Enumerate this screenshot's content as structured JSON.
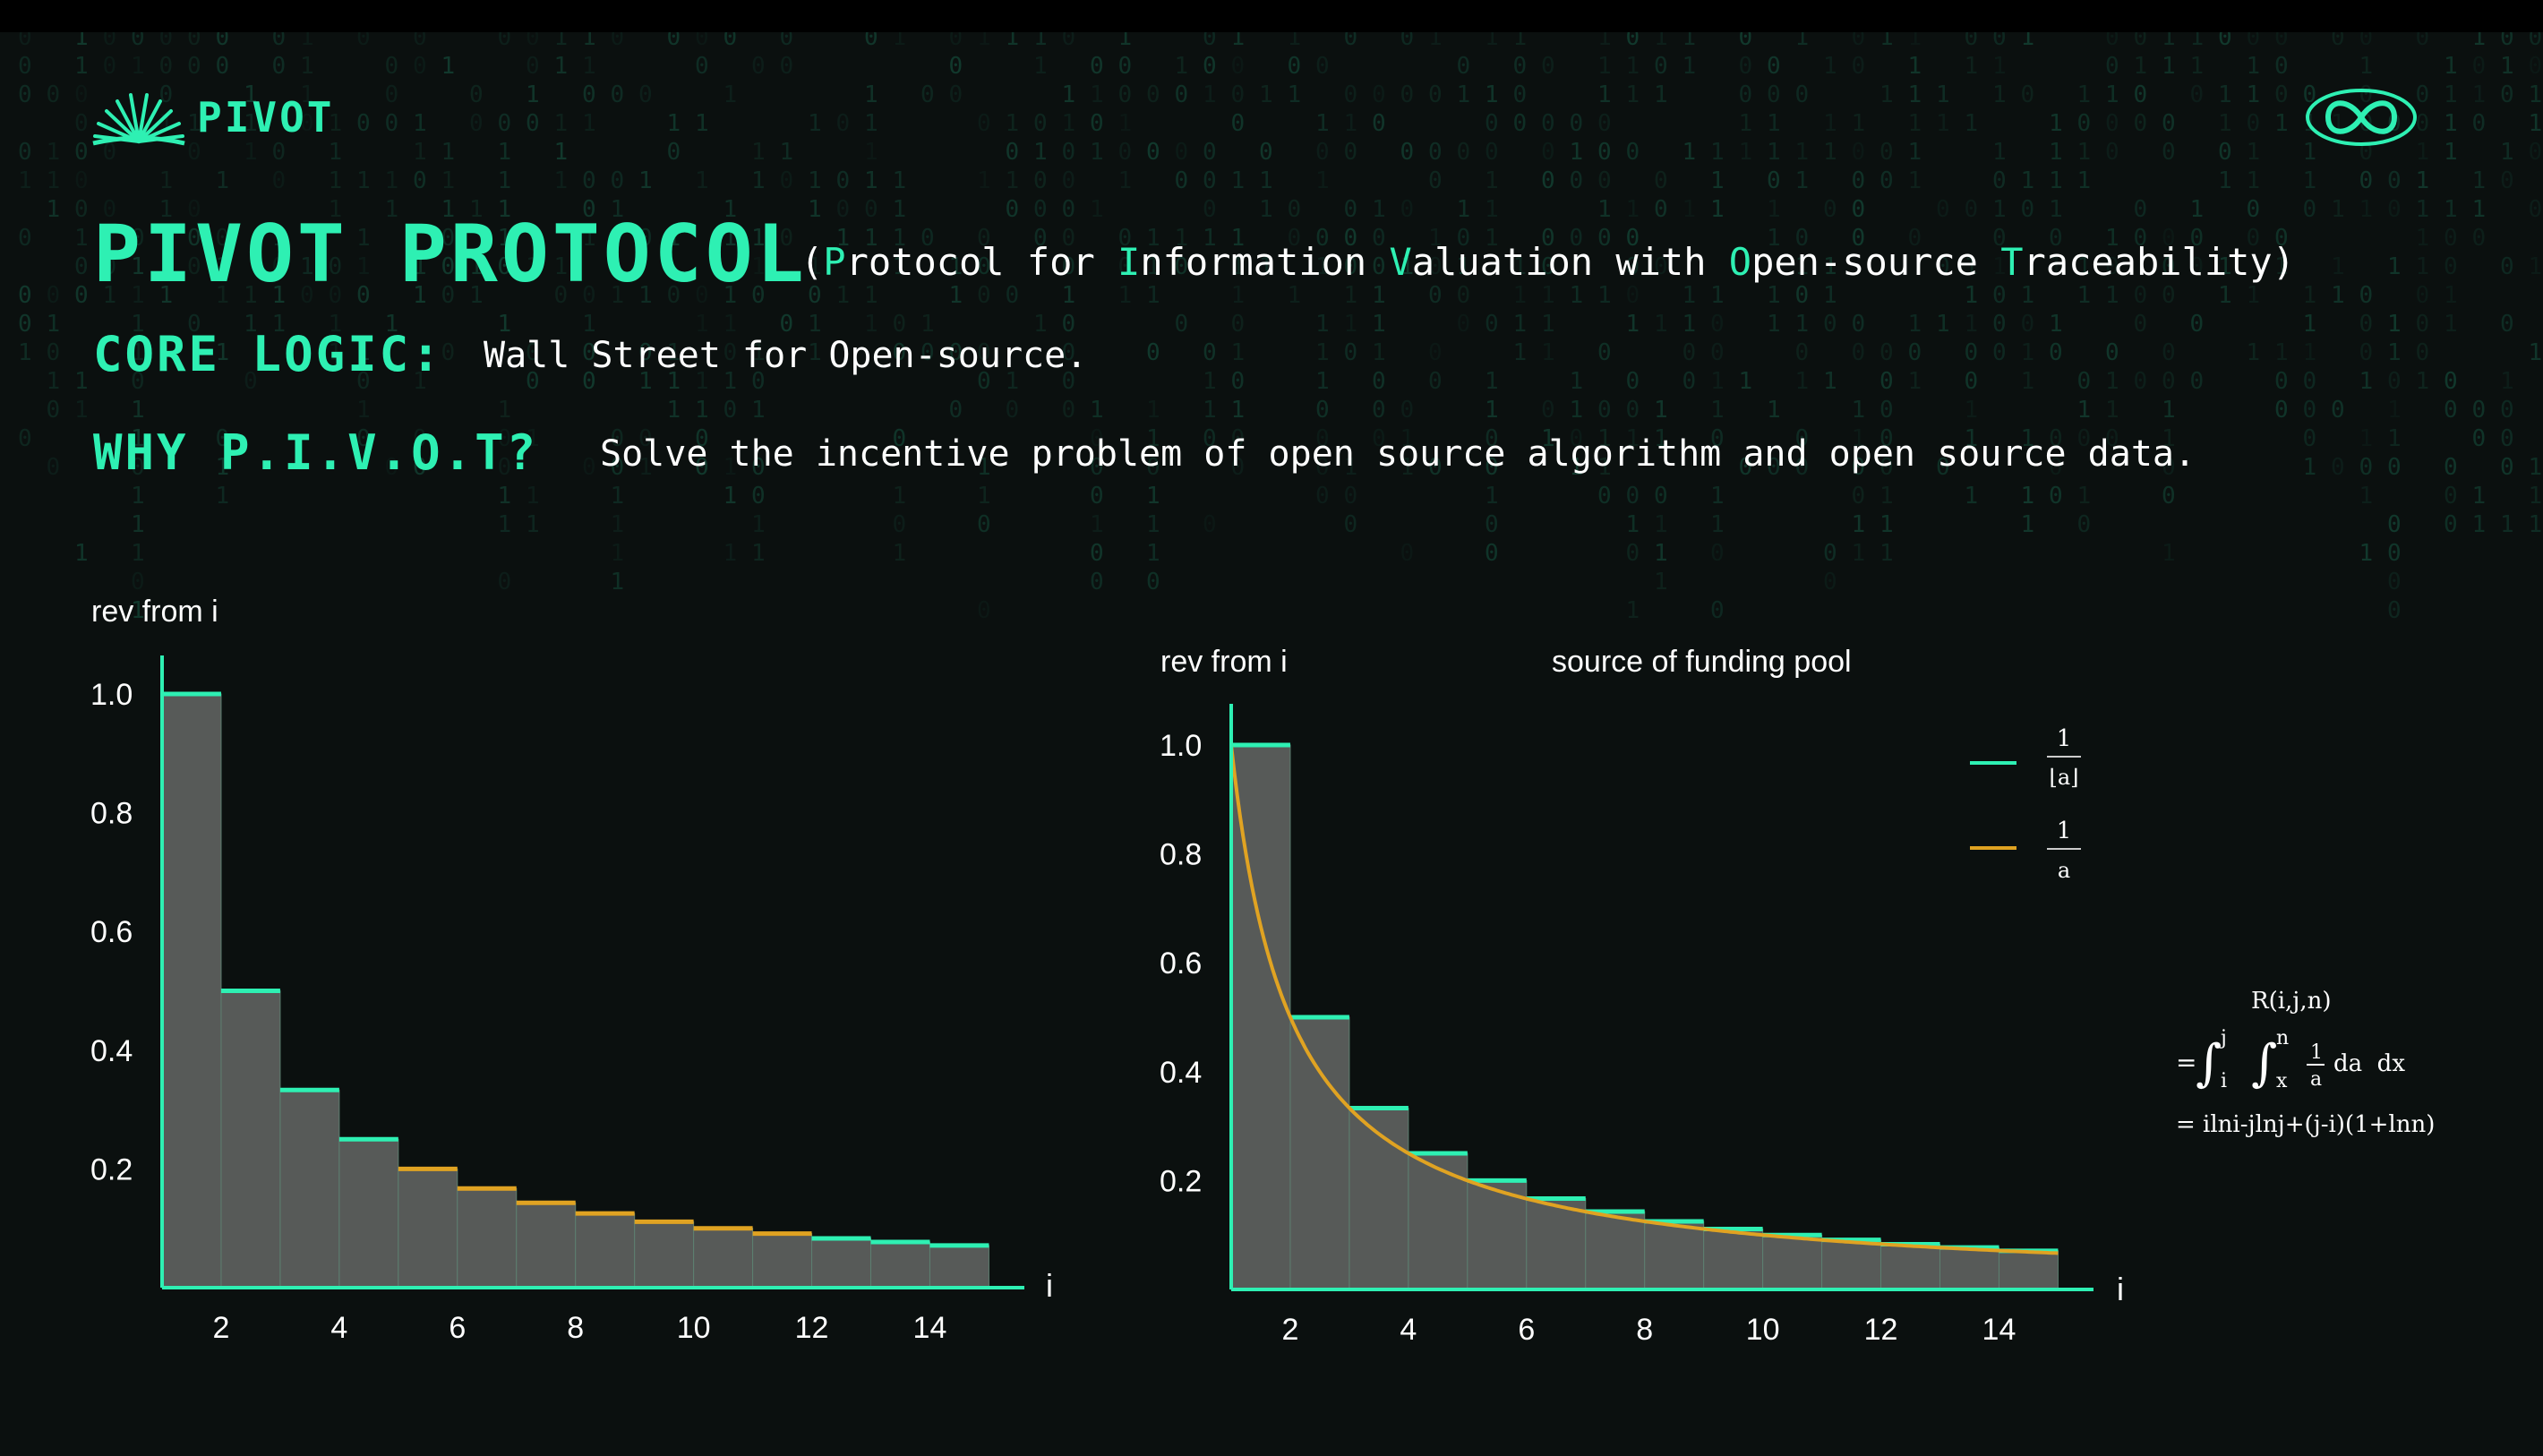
{
  "brand": {
    "name": "PIVOT",
    "accent": "#2ef0b3",
    "secondary": "#e0a322",
    "background": "#0b100f"
  },
  "icons": {
    "logo": "fan-logo-icon",
    "loop": "infinity-icon"
  },
  "header": {
    "title": "PIVOT PROTOCOL",
    "subtitle_parts": [
      {
        "t": "(",
        "hl": false
      },
      {
        "t": "P",
        "hl": true
      },
      {
        "t": "rotocol for ",
        "hl": false
      },
      {
        "t": "I",
        "hl": true
      },
      {
        "t": "nformation ",
        "hl": false
      },
      {
        "t": "V",
        "hl": true
      },
      {
        "t": "aluation with ",
        "hl": false
      },
      {
        "t": "O",
        "hl": true
      },
      {
        "t": "pen-source ",
        "hl": false
      },
      {
        "t": "T",
        "hl": true
      },
      {
        "t": "raceability)",
        "hl": false
      }
    ],
    "core_label": "CORE LOGIC:",
    "core_text": "Wall Street for Open-source.",
    "why_label": "WHY P.I.V.O.T?",
    "why_text": "Solve the incentive problem of open source algorithm and open source data."
  },
  "chart_data": [
    {
      "type": "bar",
      "ylabel": "rev from i",
      "xlabel": "i",
      "x": [
        1,
        2,
        3,
        4,
        5,
        6,
        7,
        8,
        9,
        10,
        11,
        12,
        13,
        14
      ],
      "values": [
        1.0,
        0.5,
        0.333,
        0.25,
        0.2,
        0.167,
        0.143,
        0.125,
        0.111,
        0.1,
        0.091,
        0.083,
        0.077,
        0.071
      ],
      "top_colors": [
        "#2ef0b3",
        "#2ef0b3",
        "#2ef0b3",
        "#2ef0b3",
        "#e0a322",
        "#e0a322",
        "#e0a322",
        "#e0a322",
        "#e0a322",
        "#e0a322",
        "#e0a322",
        "#2ef0b3",
        "#2ef0b3",
        "#2ef0b3"
      ],
      "xticks": [
        "2",
        "4",
        "6",
        "8",
        "10",
        "12",
        "14"
      ],
      "xtick_values": [
        2,
        4,
        6,
        8,
        10,
        12,
        14
      ],
      "yticks": [
        "0.2",
        "0.4",
        "0.6",
        "0.8",
        "1.0"
      ],
      "ytick_values": [
        0.2,
        0.4,
        0.6,
        0.8,
        1.0
      ],
      "ylim": [
        0,
        1.0
      ],
      "xlim": [
        1,
        15.6
      ]
    },
    {
      "type": "bar",
      "ylabel": "rev from i",
      "title": "source of funding pool",
      "xlabel": "i",
      "x": [
        1,
        2,
        3,
        4,
        5,
        6,
        7,
        8,
        9,
        10,
        11,
        12,
        13,
        14
      ],
      "values": [
        1.0,
        0.5,
        0.333,
        0.25,
        0.2,
        0.167,
        0.143,
        0.125,
        0.111,
        0.1,
        0.091,
        0.083,
        0.077,
        0.071
      ],
      "curve": "1/a",
      "xticks": [
        "2",
        "4",
        "6",
        "8",
        "10",
        "12",
        "14"
      ],
      "xtick_values": [
        2,
        4,
        6,
        8,
        10,
        12,
        14
      ],
      "yticks": [
        "0.2",
        "0.4",
        "0.6",
        "0.8",
        "1.0"
      ],
      "ytick_values": [
        0.2,
        0.4,
        0.6,
        0.8,
        1.0
      ],
      "ylim": [
        0,
        1.0
      ],
      "xlim": [
        1,
        15.6
      ],
      "legend": [
        {
          "num": "1",
          "den": "⌊a⌋",
          "color": "#2ef0b3"
        },
        {
          "num": "1",
          "den": "a",
          "color": "#e0a322"
        }
      ],
      "legend_position": "right"
    }
  ],
  "formula": {
    "head": "R(i,j,n)",
    "line2_eq": "=",
    "int1_upper": "j",
    "int1_lower": "i",
    "int2_upper": "n",
    "int2_lower": "x",
    "frac_num": "1",
    "frac_den": "a",
    "tail": "da  dx",
    "line3": "= ilni-jlnj+(j-i)(1+lnn)"
  }
}
